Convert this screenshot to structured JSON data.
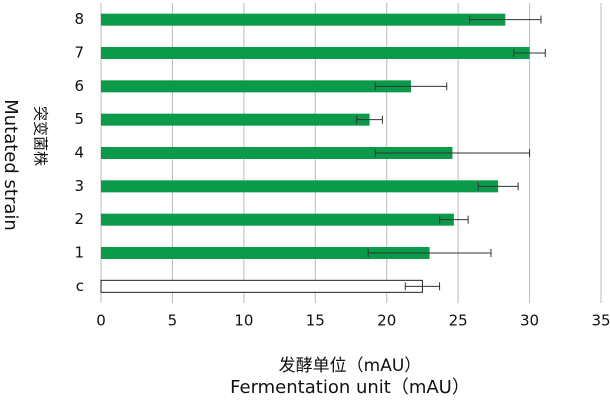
{
  "chart_data": {
    "type": "bar",
    "orientation": "horizontal",
    "y_label_lines": [
      "突变菌株",
      "Mutated strain"
    ],
    "x_label_lines": [
      "发酵单位（mAU）",
      "Fermentation unit（mAU）"
    ],
    "categories": [
      "8",
      "7",
      "6",
      "5",
      "4",
      "3",
      "2",
      "1",
      "c"
    ],
    "values": [
      28.3,
      30.0,
      21.7,
      18.8,
      24.6,
      27.8,
      24.7,
      23.0,
      22.5
    ],
    "errors": [
      2.5,
      1.1,
      2.5,
      0.9,
      5.4,
      1.4,
      1.0,
      4.3,
      1.2
    ],
    "colors": [
      "#0a9a4a",
      "#0a9a4a",
      "#0a9a4a",
      "#0a9a4a",
      "#0a9a4a",
      "#0a9a4a",
      "#0a9a4a",
      "#0a9a4a",
      "#ffffff"
    ],
    "xlim": [
      0,
      35
    ],
    "xticks": [
      0,
      5,
      10,
      15,
      20,
      25,
      30,
      35
    ],
    "grid": true
  }
}
